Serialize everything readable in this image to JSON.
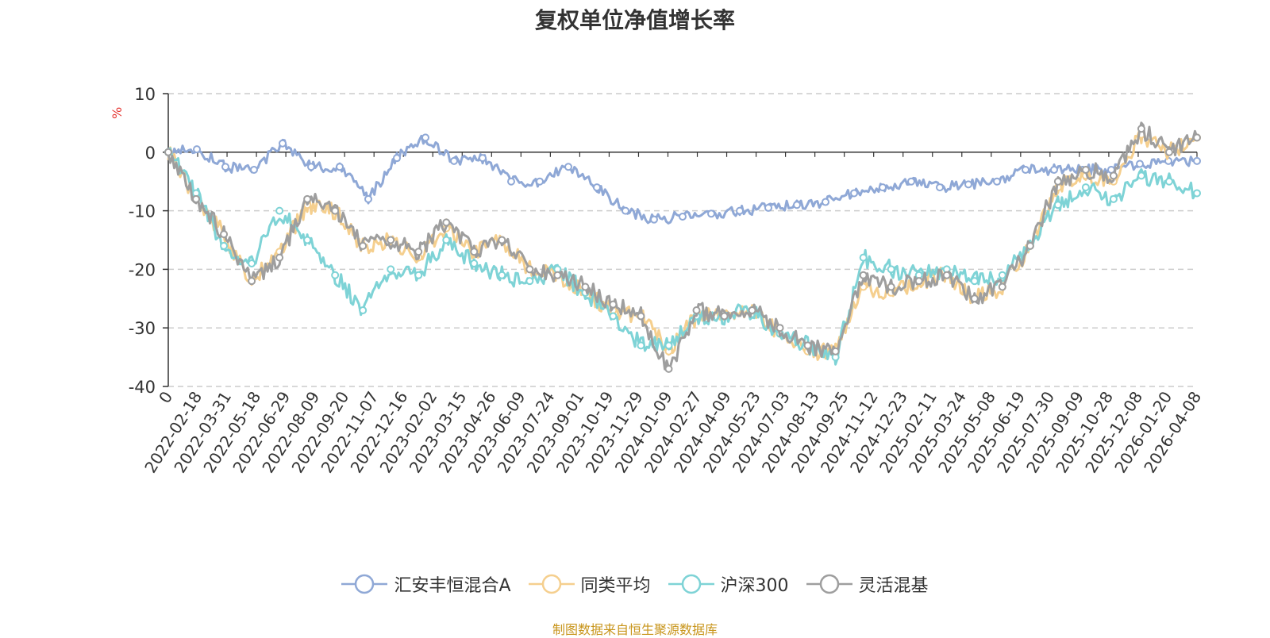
{
  "chart_data": {
    "type": "line",
    "title": "复权单位净值增长率",
    "ylabel": "%",
    "ylim": [
      -40,
      10
    ],
    "yticks": [
      10,
      0,
      -10,
      -20,
      -30,
      -40
    ],
    "x_tick_labels": [
      "0",
      "2022-02-18",
      "2022-03-31",
      "2022-05-18",
      "2022-06-29",
      "2022-08-09",
      "2022-09-20",
      "2022-11-07",
      "2022-12-16",
      "2023-02-02",
      "2023-03-15",
      "2023-04-26",
      "2023-06-09",
      "2023-07-24",
      "2023-09-01",
      "2023-10-19",
      "2023-11-29",
      "2024-01-09",
      "2024-02-27",
      "2024-04-09",
      "2024-05-23",
      "2024-07-03",
      "2024-08-13",
      "2024-09-25",
      "2024-11-12",
      "2024-12-23",
      "2025-02-11",
      "2025-03-24",
      "2025-05-08",
      "2025-06-19",
      "2025-07-30",
      "2025-09-09",
      "2025-10-28",
      "2025-12-08",
      "2026-01-20",
      "2026-04-08"
    ],
    "source": "制图数据来自恒生聚源数据库",
    "series": [
      {
        "name": "汇安丰恒混合A",
        "color": "#8fa8d6",
        "values": [
          0,
          0.5,
          -2.5,
          -3,
          1.5,
          -2.5,
          -2.5,
          -8,
          -1,
          2.5,
          -1.5,
          -1,
          -5,
          -5,
          -2.5,
          -6,
          -10,
          -11.5,
          -11,
          -10.5,
          -10,
          -9.5,
          -9,
          -8.5,
          -7,
          -6,
          -5,
          -6,
          -5.5,
          -5,
          -3,
          -3,
          -3,
          -3,
          -2,
          -1.5,
          -1.5
        ]
      },
      {
        "name": "同类平均",
        "color": "#f5cf8e",
        "values": [
          0,
          -8,
          -14,
          -22,
          -17,
          -9,
          -10,
          -16,
          -15,
          -18,
          -13,
          -17,
          -15,
          -20,
          -21,
          -24,
          -27,
          -28,
          -34,
          -28,
          -28,
          -27,
          -31,
          -34,
          -34,
          -23,
          -24,
          -22,
          -21,
          -25,
          -23,
          -16,
          -6,
          -4,
          -5,
          3,
          0,
          2.5
        ]
      },
      {
        "name": "沪深300",
        "color": "#7ed3d6",
        "values": [
          0,
          -7,
          -16,
          -19,
          -10,
          -15,
          -21,
          -27,
          -20,
          -21,
          -15,
          -19,
          -21,
          -22,
          -20,
          -24,
          -28,
          -33,
          -33,
          -28,
          -28,
          -27,
          -31,
          -33,
          -35,
          -18,
          -20,
          -21,
          -20,
          -22,
          -21,
          -16,
          -9,
          -6,
          -8,
          -4,
          -5,
          -7
        ]
      },
      {
        "name": "灵活混基",
        "color": "#9e9e9e",
        "values": [
          0,
          -8,
          -14,
          -22,
          -18,
          -8,
          -10,
          -16,
          -15,
          -17,
          -12,
          -17,
          -15,
          -20,
          -21,
          -23,
          -26,
          -28,
          -37,
          -27,
          -28,
          -27,
          -30,
          -33,
          -34,
          -21,
          -23,
          -22,
          -21,
          -25,
          -23,
          -16,
          -5,
          -3,
          -4,
          4,
          0,
          2.5
        ]
      }
    ]
  }
}
